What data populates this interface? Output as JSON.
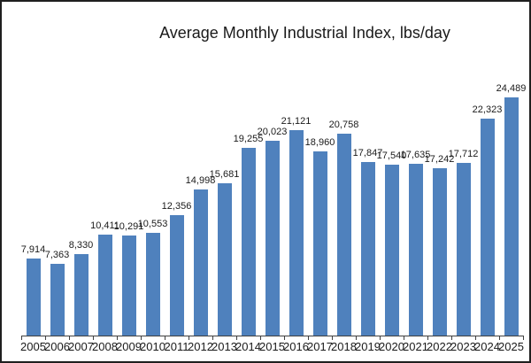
{
  "window": {
    "background": "#ffffff",
    "border_color": "#1f1f1f"
  },
  "chart_data": {
    "type": "bar",
    "title": "Average Monthly Industrial Index, lbs/day",
    "xlabel": "",
    "ylabel": "",
    "categories": [
      "2005",
      "2006",
      "2007",
      "2008",
      "2009",
      "2010",
      "2011",
      "2012",
      "2013",
      "2014",
      "2015",
      "2016",
      "2017",
      "2018",
      "2019",
      "2020",
      "2021",
      "2022",
      "2023",
      "2024",
      "2025"
    ],
    "values": [
      7914,
      7363,
      8330,
      10411,
      10291,
      10553,
      12356,
      14998,
      15681,
      19255,
      20023,
      21121,
      18960,
      20758,
      17847,
      17540,
      17635,
      17242,
      17712,
      22323,
      24489
    ],
    "value_labels": [
      "7,914",
      "7,363",
      "8,330",
      "10,411",
      "10,291",
      "10,553",
      "12,356",
      "14,998",
      "15,681",
      "19,255",
      "20,023",
      "21,121",
      "18,960",
      "20,758",
      "17,847",
      "17,540",
      "17,635",
      "17,242",
      "17,712",
      "22,323",
      "24,489"
    ],
    "ylim": [
      0,
      24489
    ],
    "grid": false,
    "legend": "none",
    "bar_color": "#4F81BD",
    "axis_color": "#404040",
    "text_color": "#1a1a1a"
  }
}
